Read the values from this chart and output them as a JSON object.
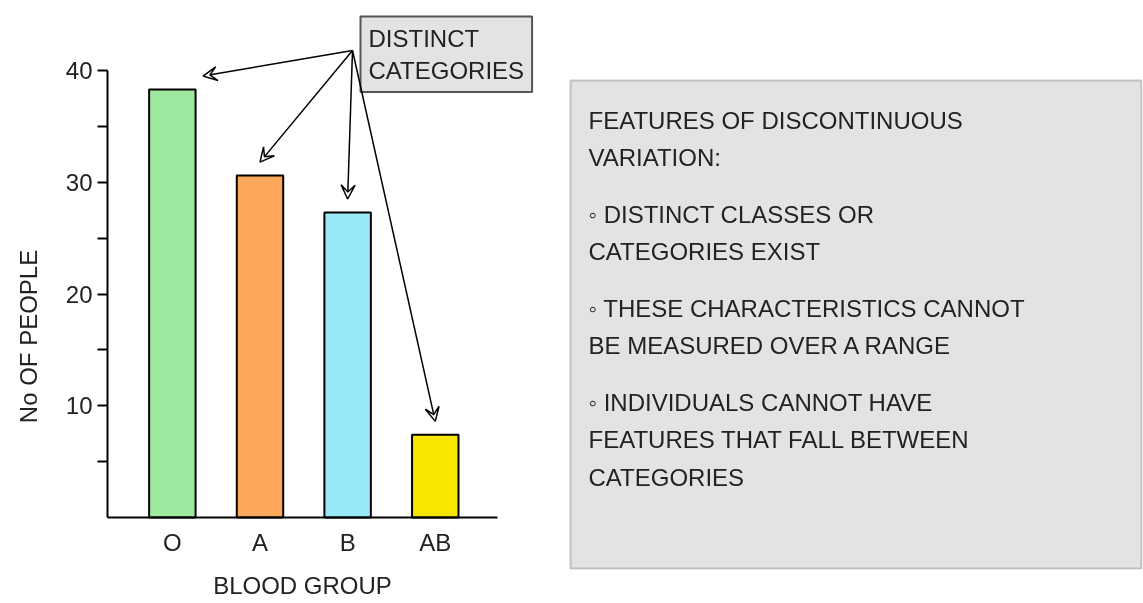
{
  "chart_data": {
    "type": "bar",
    "xlabel": "BLOOD GROUP",
    "ylabel": "No OF PEOPLE",
    "categories": [
      "O",
      "A",
      "B",
      "AB"
    ],
    "values": [
      38.3,
      30.6,
      27.3,
      7.4
    ],
    "colors": [
      "#9ee8a0",
      "#fba85a",
      "#97e9f7",
      "#f7e600"
    ],
    "ylim": [
      0,
      40
    ],
    "yticks": [
      {
        "value": 5,
        "label": null
      },
      10,
      {
        "value": 15,
        "label": null
      },
      20,
      {
        "value": 25,
        "label": null
      },
      30,
      {
        "value": 35,
        "label": null
      },
      40
    ],
    "grid": false,
    "annotations": [
      "DISTINCT CATEGORIES",
      "FEATURES OF DISCONTINUOUS VARIATION:",
      "◦ DISTINCT CLASSES OR CATEGORIES EXIST",
      "◦ THESE CHARACTERISTICS CANNOT BE MEASURED OVER A RANGE",
      "◦ INDIVIDUALS CANNOT HAVE FEATURES THAT FALL BETWEEN CATEGORIES"
    ]
  }
}
